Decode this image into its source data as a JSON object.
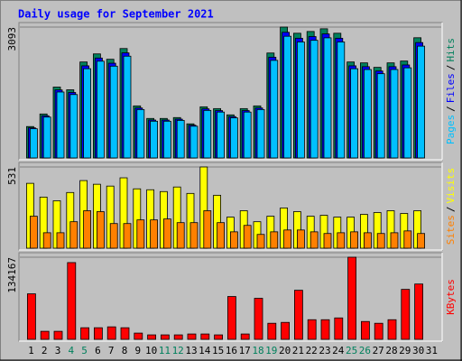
{
  "chart_data": [
    {
      "type": "bar",
      "title": "Daily usage for September 2021",
      "legend_separator": "/",
      "ylim": [
        0,
        3093
      ],
      "yticks": [
        3093
      ],
      "grid": true,
      "series": [
        {
          "name": "Hits",
          "color": "#00805c",
          "values": [
            742,
            1039,
            1675,
            1611,
            2268,
            2459,
            2332,
            2586,
            1230,
            933,
            933,
            954,
            806,
            1208,
            1166,
            1018,
            1166,
            1230,
            2480,
            3093,
            2947,
            2989,
            3053,
            2947,
            2268,
            2247,
            2141,
            2247,
            2290,
            2841,
            0
          ]
        },
        {
          "name": "Files",
          "color": "#0000ff",
          "values": [
            712,
            997,
            1608,
            1547,
            2177,
            2361,
            2239,
            2483,
            1181,
            896,
            896,
            916,
            774,
            1160,
            1119,
            977,
            1119,
            1181,
            2381,
            2969,
            2829,
            2869,
            2931,
            2829,
            2177,
            2157,
            2055,
            2157,
            2198,
            2727,
            0
          ]
        },
        {
          "name": "Pages",
          "color": "#00c0ff",
          "values": [
            690,
            966,
            1558,
            1498,
            2109,
            2287,
            2169,
            2405,
            1144,
            868,
            868,
            887,
            750,
            1123,
            1084,
            947,
            1084,
            1144,
            2306,
            2876,
            2741,
            2780,
            2839,
            2741,
            2109,
            2090,
            1991,
            2090,
            2130,
            2642,
            0
          ]
        }
      ]
    },
    {
      "type": "bar",
      "legend_separator": "/",
      "ylim": [
        0,
        531
      ],
      "yticks": [
        531
      ],
      "grid": true,
      "series": [
        {
          "name": "Visits",
          "color": "#ffff00",
          "values": [
            424,
            334,
            310,
            364,
            442,
            418,
            406,
            460,
            388,
            382,
            370,
            400,
            358,
            531,
            346,
            203,
            245,
            173,
            209,
            263,
            239,
            209,
            215,
            203,
            203,
            221,
            233,
            245,
            227,
            245,
            0
          ]
        },
        {
          "name": "Sites",
          "color": "#ff8000",
          "values": [
            209,
            101,
            101,
            173,
            245,
            239,
            161,
            161,
            185,
            185,
            191,
            167,
            167,
            245,
            167,
            107,
            149,
            90,
            107,
            119,
            119,
            107,
            96,
            101,
            107,
            101,
            96,
            101,
            113,
            96,
            0
          ]
        }
      ]
    },
    {
      "type": "bar",
      "ylim": [
        0,
        134167
      ],
      "yticks": [
        134167
      ],
      "grid": true,
      "categories": [
        "1",
        "2",
        "3",
        "4",
        "5",
        "6",
        "7",
        "8",
        "9",
        "10",
        "11",
        "12",
        "13",
        "14",
        "15",
        "16",
        "17",
        "18",
        "19",
        "20",
        "21",
        "22",
        "23",
        "24",
        "25",
        "26",
        "27",
        "28",
        "29",
        "30",
        "31"
      ],
      "category_colors": [
        "#000000",
        "#000000",
        "#000000",
        "#00805c",
        "#00805c",
        "#000000",
        "#000000",
        "#000000",
        "#000000",
        "#000000",
        "#00805c",
        "#00805c",
        "#000000",
        "#000000",
        "#000000",
        "#000000",
        "#000000",
        "#00805c",
        "#00805c",
        "#000000",
        "#000000",
        "#000000",
        "#000000",
        "#000000",
        "#00805c",
        "#00805c",
        "#000000",
        "#000000",
        "#000000",
        "#000000",
        "#000000"
      ],
      "series": [
        {
          "name": "KBytes",
          "color": "#ff0000",
          "values": [
            74358,
            13122,
            13122,
            125388,
            18954,
            18954,
            20412,
            18954,
            10206,
            7290,
            7290,
            7290,
            8748,
            8748,
            7290,
            69984,
            8748,
            67068,
            26244,
            27702,
            80190,
            32076,
            32076,
            34992,
            134167,
            29160,
            26244,
            32076,
            81648,
            90396,
            0
          ]
        }
      ]
    }
  ]
}
